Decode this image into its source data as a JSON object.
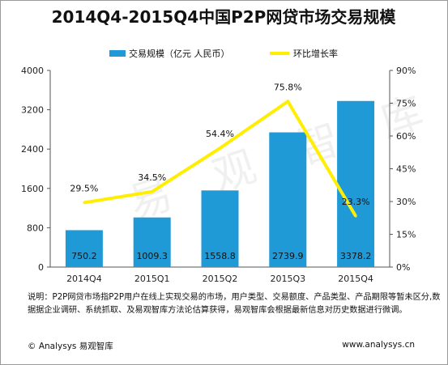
{
  "chart_data": {
    "type": "bar",
    "title": "2014Q4-2015Q4中国P2P网贷市场交易规模",
    "categories": [
      "2014Q4",
      "2015Q1",
      "2015Q2",
      "2015Q3",
      "2015Q4"
    ],
    "series": [
      {
        "name": "交易规模（亿元 人民币）",
        "type": "bar",
        "axis": "left",
        "values": [
          750.2,
          1009.3,
          1558.8,
          2739.9,
          3378.2
        ],
        "labels": [
          "750.2",
          "1009.3",
          "1558.8",
          "2739.9",
          "3378.2"
        ]
      },
      {
        "name": "环比增长率",
        "type": "line",
        "axis": "right",
        "values": [
          29.5,
          34.5,
          54.4,
          75.8,
          23.3
        ],
        "labels": [
          "29.5%",
          "34.5%",
          "54.4%",
          "75.8%",
          "23.3%"
        ]
      }
    ],
    "y_left": {
      "ylim": [
        0,
        4000
      ],
      "ticks": [
        "0",
        "800",
        "1600",
        "2400",
        "3200",
        "4000"
      ]
    },
    "y_right": {
      "ylim": [
        0,
        90
      ],
      "ticks": [
        "0%",
        "15%",
        "30%",
        "45%",
        "60%",
        "75%",
        "90%"
      ]
    },
    "legend_position": "top",
    "grid": false
  },
  "colors": {
    "bar": "#1f9ad6",
    "line": "#ffee00",
    "axis": "#555555"
  },
  "note": "说明：P2P网贷市场指P2P用户在线上实现交易的市场，用户类型、交易额度、产品类型、产品期限等暂未区分,数据据企业调研、系统抓取、及易观智库方法论估算获得，易观智库会根据最新信息对历史数据进行微调。",
  "footer": {
    "left": "© Analysys 易观智库",
    "right": "www.analysys.cn"
  },
  "watermark": "易 观 智 库"
}
